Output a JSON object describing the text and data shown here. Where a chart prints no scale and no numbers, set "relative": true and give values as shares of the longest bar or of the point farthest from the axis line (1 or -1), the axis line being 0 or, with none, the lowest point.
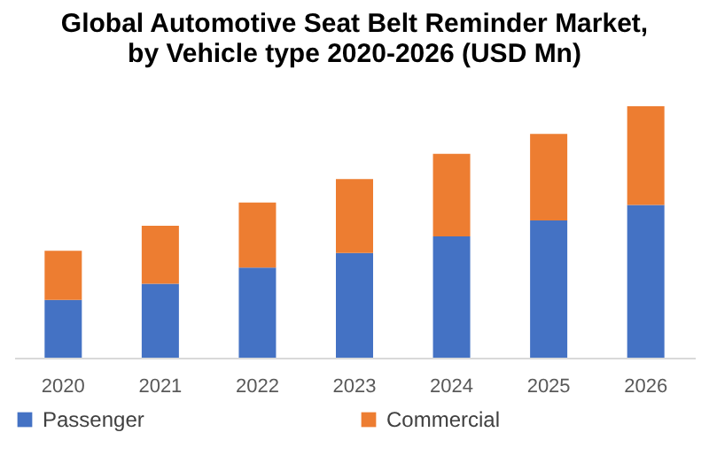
{
  "chart_data": {
    "type": "bar",
    "title": [
      "Global Automotive Seat Belt Reminder Market,",
      "by Vehicle type 2020-2026 (USD Mn)"
    ],
    "categories": [
      "2020",
      "2021",
      "2022",
      "2023",
      "2024",
      "2025",
      "2026"
    ],
    "stacked": true,
    "relative": true,
    "legend": "bottom",
    "series": [
      {
        "name": "Passenger",
        "color": "#4472c4",
        "values": [
          0.23,
          0.294,
          0.358,
          0.416,
          0.482,
          0.546,
          0.607
        ]
      },
      {
        "name": "Commercial",
        "color": "#ed7d31",
        "values": [
          0.195,
          0.231,
          0.259,
          0.294,
          0.329,
          0.344,
          0.393
        ]
      }
    ]
  }
}
